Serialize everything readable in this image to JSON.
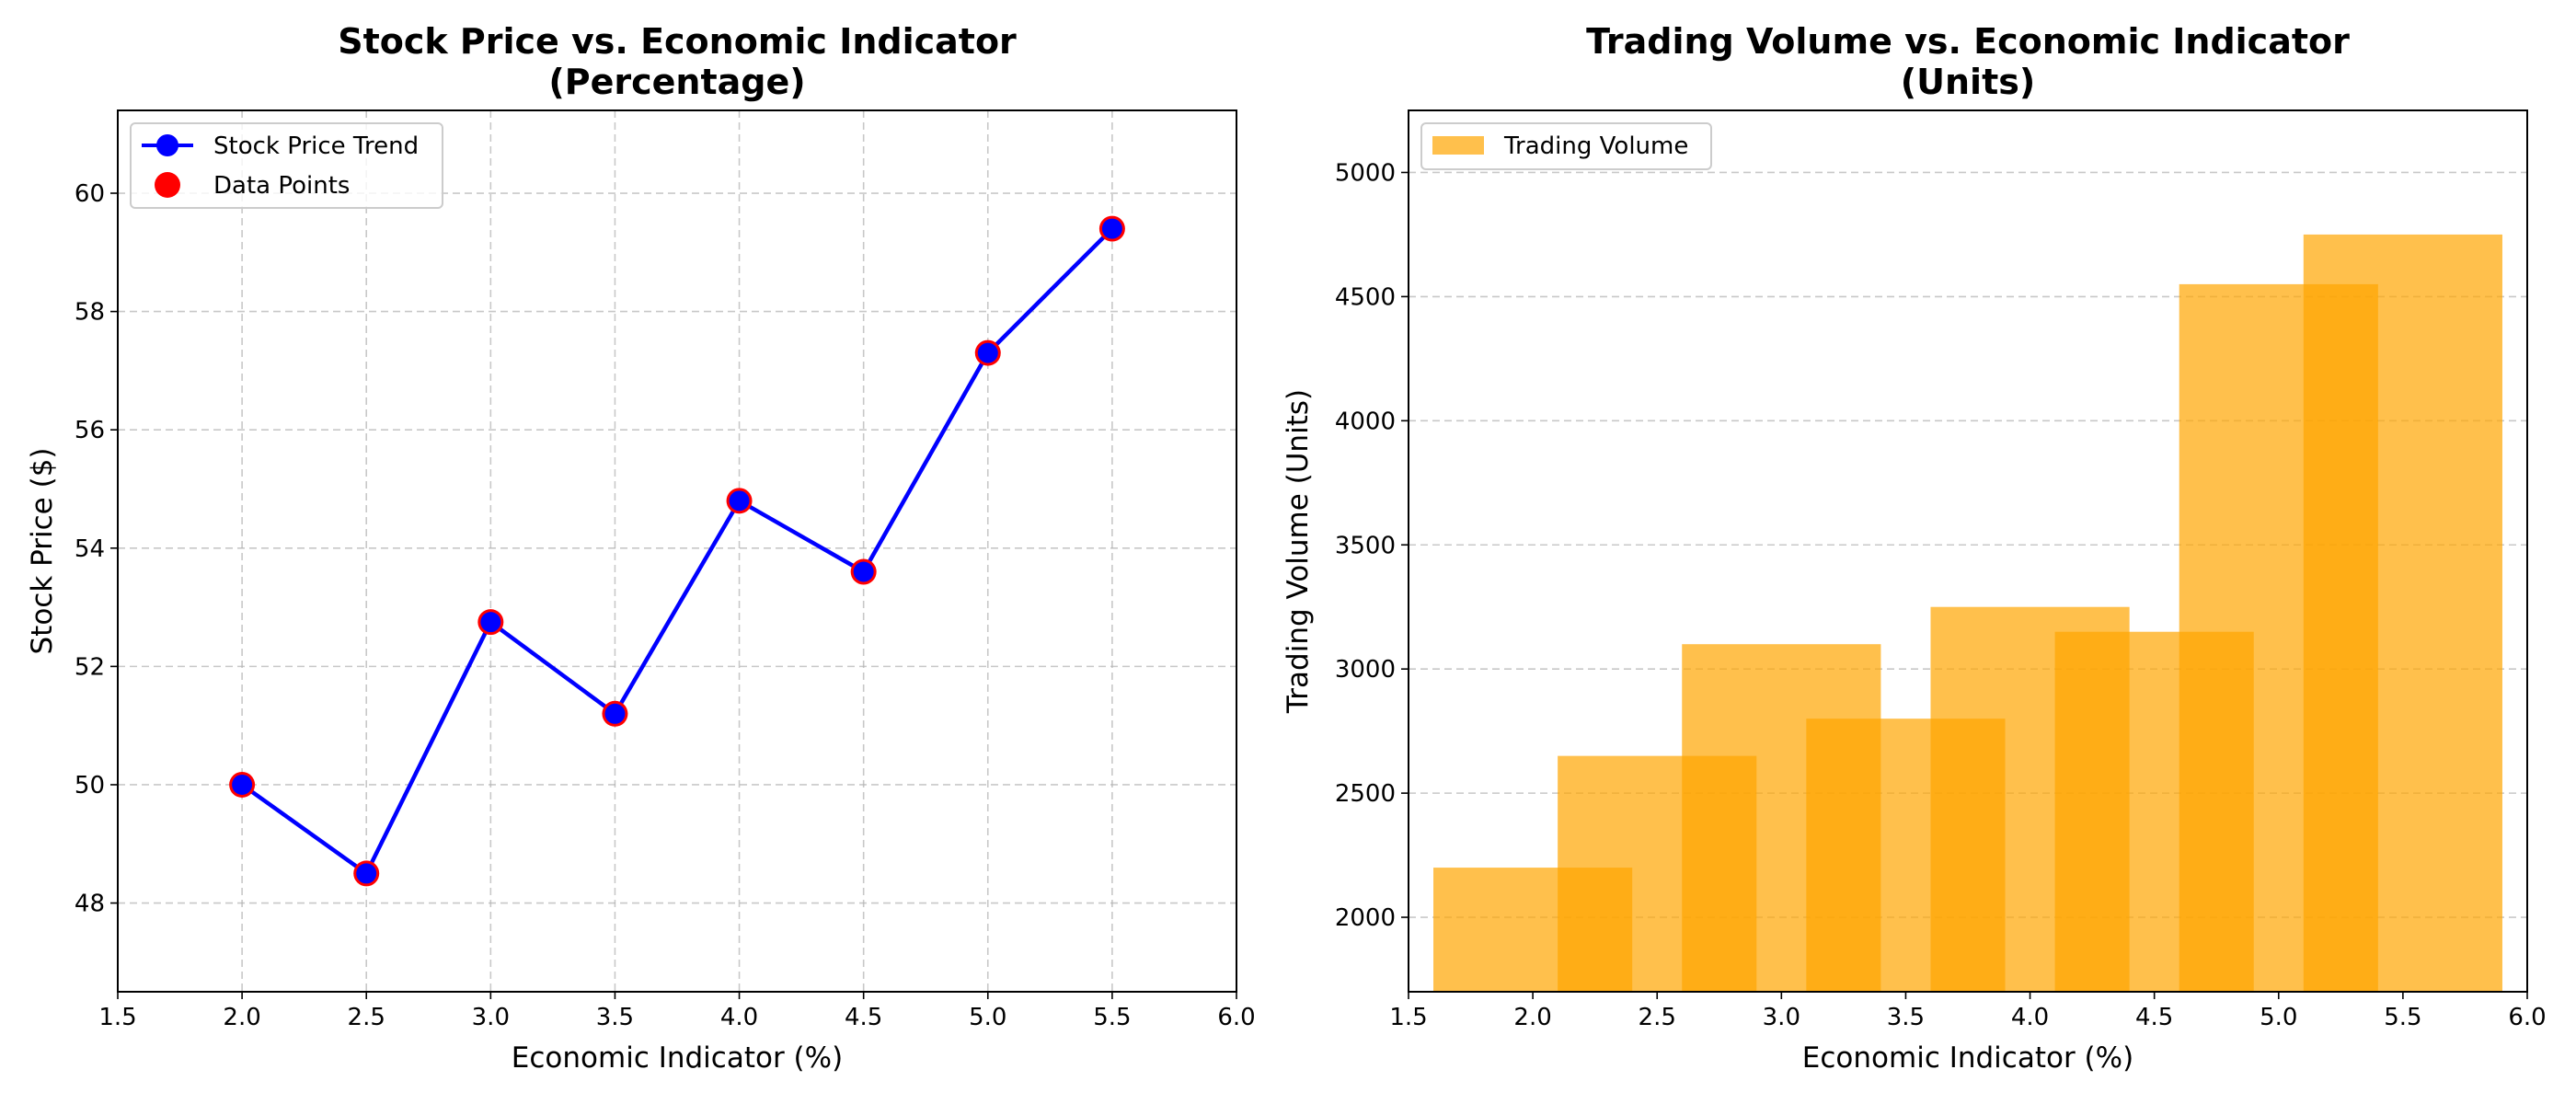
{
  "colors": {
    "line": "#0000ff",
    "marker_fill": "#0000ff",
    "scatter": "#ff0000",
    "bar": "#ffa500",
    "grid": "#b0b0b0"
  },
  "chart_data": [
    {
      "type": "line",
      "title_line1": "Stock Price vs. Economic Indicator",
      "title_line2": "(Percentage)",
      "xlabel": "Economic Indicator (%)",
      "ylabel": "Stock Price ($)",
      "xlim": [
        1.5,
        6.0
      ],
      "ylim": [
        46.5,
        61.4
      ],
      "xticks": [
        1.5,
        2.0,
        2.5,
        3.0,
        3.5,
        4.0,
        4.5,
        5.0,
        5.5,
        6.0
      ],
      "yticks": [
        48,
        50,
        52,
        54,
        56,
        58,
        60
      ],
      "grid": "both",
      "legend_position": "top-left",
      "legend": [
        "Stock Price Trend",
        "Data Points"
      ],
      "x": [
        2.0,
        2.5,
        3.0,
        3.5,
        4.0,
        4.5,
        5.0,
        5.5
      ],
      "y": [
        50.0,
        48.5,
        52.75,
        51.2,
        54.8,
        53.6,
        57.3,
        59.4
      ]
    },
    {
      "type": "bar",
      "title_line1": "Trading Volume vs. Economic Indicator",
      "title_line2": "(Units)",
      "xlabel": "Economic Indicator (%)",
      "ylabel": "Trading Volume (Units)",
      "xlim": [
        1.5,
        6.0
      ],
      "ylim": [
        1700,
        5250
      ],
      "xticks": [
        1.5,
        2.0,
        2.5,
        3.0,
        3.5,
        4.0,
        4.5,
        5.0,
        5.5,
        6.0
      ],
      "yticks": [
        2000,
        2500,
        3000,
        3500,
        4000,
        4500,
        5000
      ],
      "grid": "y",
      "legend_position": "top-left",
      "legend": [
        "Trading Volume"
      ],
      "bar_width": 0.8,
      "x": [
        2.0,
        2.5,
        3.0,
        3.5,
        4.0,
        4.5,
        5.0,
        5.5
      ],
      "values": [
        2200,
        2650,
        3100,
        2800,
        3250,
        3150,
        4550,
        4750
      ]
    }
  ]
}
